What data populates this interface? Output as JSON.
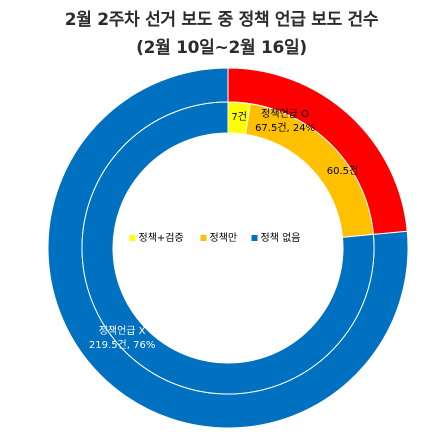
{
  "chart_data": {
    "type": "donut",
    "title_line1": "2월 2주차 선거 보도 중 정책 언급 보도 건수",
    "title_line2": "(2월 10일~2월 16일)",
    "outer_ring": [
      {
        "label": "정책언급 O",
        "value": 67.5,
        "percent": 24,
        "display": "67.5건, 24%",
        "color": "#ff0000"
      },
      {
        "label": "정책언급 X",
        "value": 219.5,
        "percent": 76,
        "display": "219.5건, 76%",
        "color": "#0070c0"
      }
    ],
    "inner_ring": [
      {
        "name": "정책+검증",
        "value": 7,
        "display": "7건",
        "color": "#ffff00"
      },
      {
        "name": "정책만",
        "value": 60.5,
        "display": "60.5건",
        "color": "#ffc000"
      },
      {
        "name": "정책 없음",
        "value": 219.5,
        "display": "",
        "color": "#0070c0"
      }
    ],
    "legend": {
      "placement": "center",
      "entries": [
        "정책+검증",
        "정책만",
        "정책 없음"
      ]
    }
  }
}
